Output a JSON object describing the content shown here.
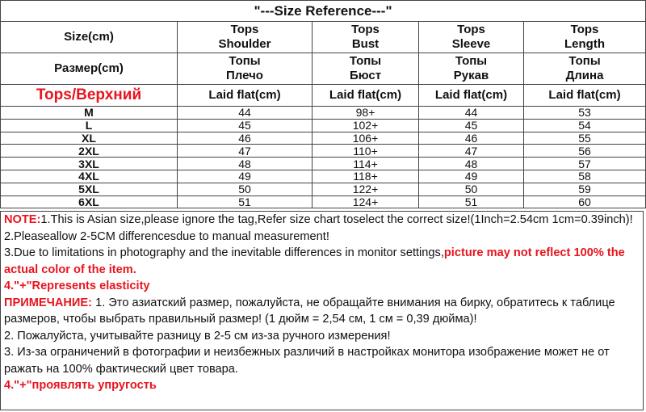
{
  "title": "\"---Size Reference---\"",
  "table": {
    "header_rows": [
      {
        "label": "Size(cm)",
        "cells": [
          [
            "Tops",
            "Shoulder"
          ],
          [
            "Tops",
            "Bust"
          ],
          [
            "Tops",
            "Sleeve"
          ],
          [
            "Tops",
            "Length"
          ]
        ]
      },
      {
        "label": "Размер(cm)",
        "cells": [
          [
            "Топы",
            "Плечо"
          ],
          [
            "Топы",
            "Бюст"
          ],
          [
            "Топы",
            "Рукав"
          ],
          [
            "Топы",
            "Длина"
          ]
        ]
      },
      {
        "label": "Tops/Верхний",
        "cells": [
          [
            "Laid flat(cm)"
          ],
          [
            "Laid flat(cm)"
          ],
          [
            "Laid flat(cm)"
          ],
          [
            "Laid flat(cm)"
          ]
        ]
      }
    ],
    "rows": [
      [
        "M",
        "44",
        "98+",
        "44",
        "53"
      ],
      [
        "L",
        "45",
        "102+",
        "45",
        "54"
      ],
      [
        "XL",
        "46",
        "106+",
        "46",
        "55"
      ],
      [
        "2XL",
        "47",
        "110+",
        "47",
        "56"
      ],
      [
        "3XL",
        "48",
        "114+",
        "48",
        "57"
      ],
      [
        "4XL",
        "49",
        "118+",
        "49",
        "58"
      ],
      [
        "5XL",
        "50",
        "122+",
        "50",
        "59"
      ],
      [
        "6XL",
        "51",
        "124+",
        "51",
        "60"
      ]
    ]
  },
  "notes": [
    {
      "label": "NOTE:",
      "text": "1.This is Asian size,please ignore the tag,Refer size chart toselect the correct size!(1Inch=2.54cm 1cm=0.39inch)!"
    },
    {
      "text": "2.Pleaseallow 2-5CM differencesdue to manual measurement!"
    },
    {
      "text": "3.Due to limitations in photography and the inevitable differences in monitor settings,",
      "highlight": "picture may not reflect 100% the actual color of the item."
    },
    {
      "highlight": "4.\"+\"Represents elasticity"
    },
    {
      "label": "ПРИМЕЧАНИЕ:",
      "text": " 1. Это азиатский размер, пожалуйста, не обращайте внимания на бирку, обратитесь к таблице размеров, чтобы выбрать правильный размер! (1 дюйм = 2,54 см, 1 см = 0,39 дюйма)!"
    },
    {
      "text": "2. Пожалуйста, учитывайте разницу в 2-5 см из-за ручного измерения!"
    },
    {
      "text": "3. Из-за ограничений в фотографии и неизбежных различий в настройках монитора изображение может не от ражать на 100% фактический цвет товара."
    },
    {
      "highlight": "4.\"+\"проявлять упругость"
    }
  ]
}
